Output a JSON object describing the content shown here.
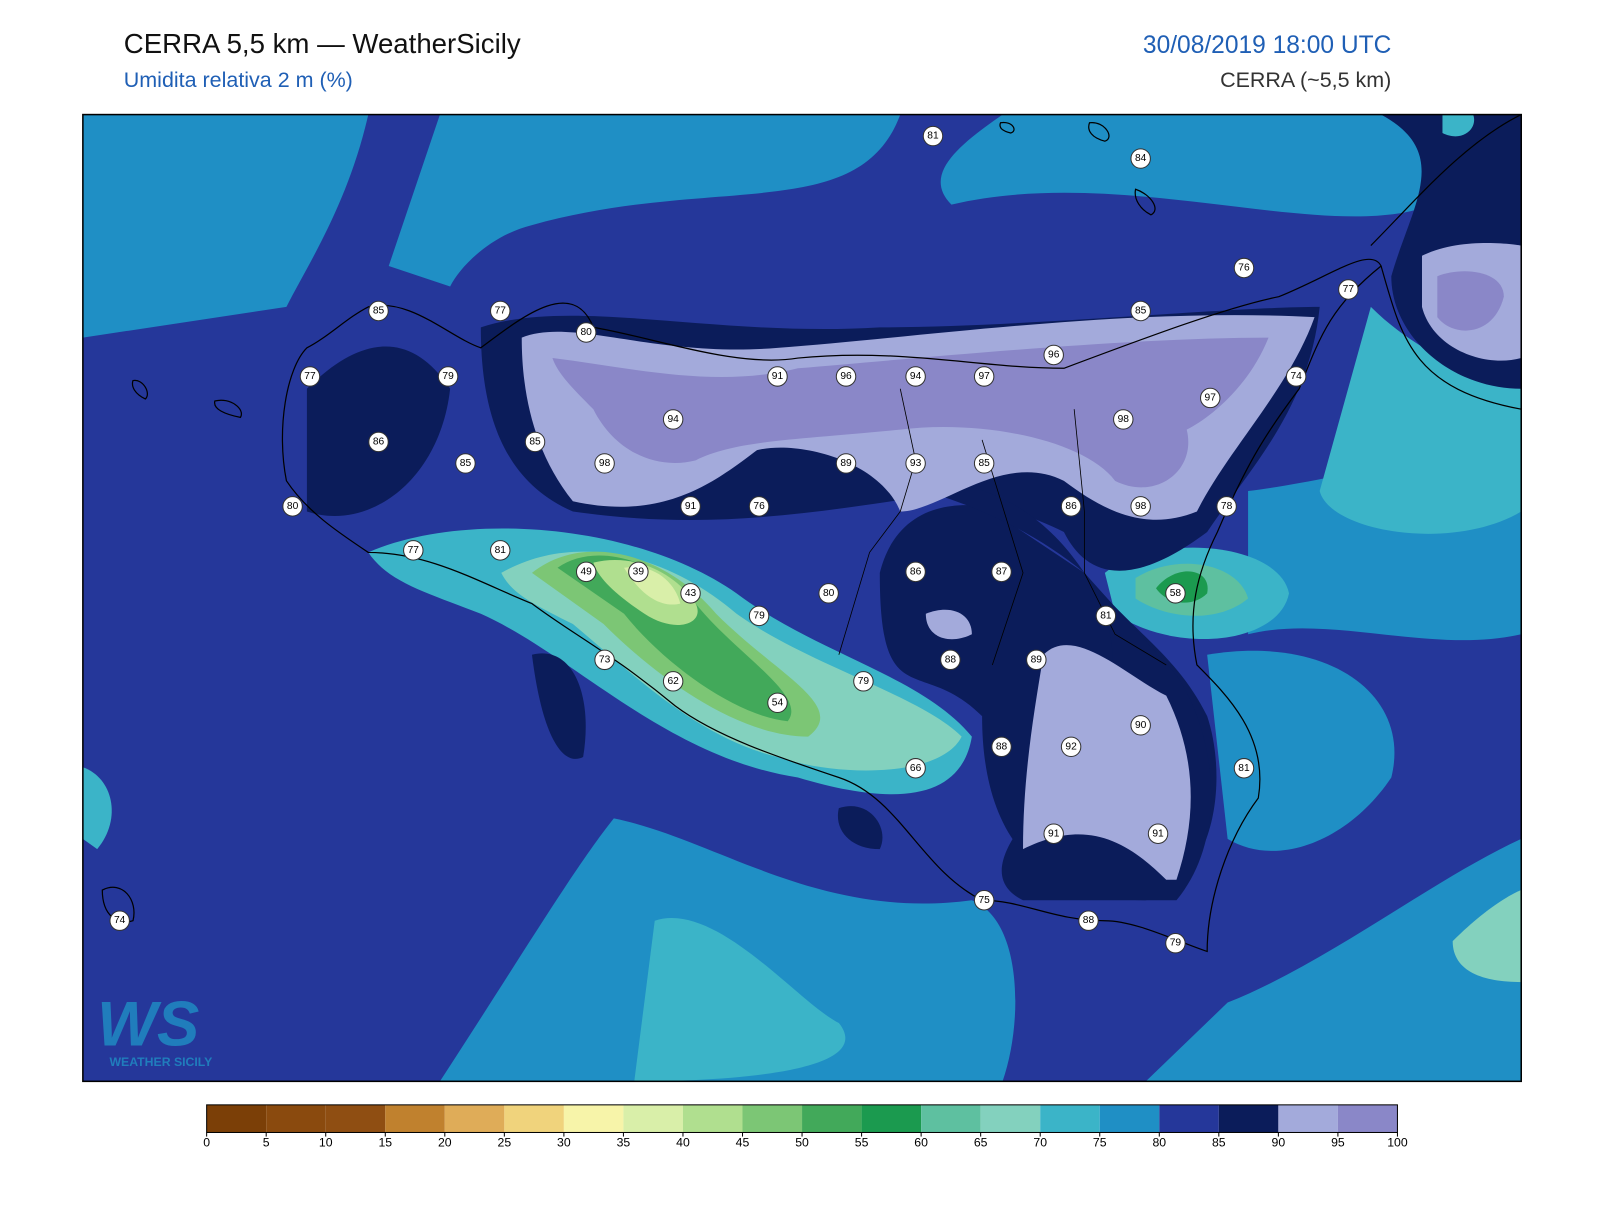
{
  "header": {
    "title": "CERRA 5,5 km — WeatherSicily",
    "subtitle": "Umidita relativa 2 m (%)",
    "datetime": "30/08/2019 18:00 UTC",
    "model": "CERRA (~5,5 km)"
  },
  "logo": {
    "text": "WS",
    "subtext": "WEATHER SICILY"
  },
  "stations": [
    81,
    84,
    76,
    77,
    85,
    77,
    80,
    85,
    96,
    77,
    79,
    91,
    96,
    94,
    97,
    97,
    74,
    94,
    98,
    86,
    85,
    85,
    98,
    89,
    93,
    85,
    80,
    91,
    76,
    86,
    98,
    78,
    77,
    81,
    49,
    39,
    86,
    87,
    43,
    58,
    80,
    79,
    81,
    88,
    89,
    73,
    62,
    79,
    54,
    90,
    88,
    92,
    66,
    81,
    91,
    91,
    74,
    75,
    88,
    79
  ],
  "colorbar": {
    "ticks": [
      0,
      5,
      10,
      15,
      20,
      25,
      30,
      35,
      40,
      45,
      50,
      55,
      60,
      65,
      70,
      75,
      80,
      85,
      90,
      95,
      100
    ],
    "colors": [
      "#7b3f07",
      "#8a4a0e",
      "#8f4e12",
      "#c0812e",
      "#dfac58",
      "#f0d37c",
      "#f7f4a9",
      "#d9efa9",
      "#b0df8f",
      "#7cc675",
      "#42a95a",
      "#1b9a4f",
      "#5ec0a0",
      "#83d1be",
      "#3bb4c8",
      "#1f8fc5",
      "#25379a",
      "#0b1c5a",
      "#a3aadb",
      "#8a87c8"
    ]
  }
}
